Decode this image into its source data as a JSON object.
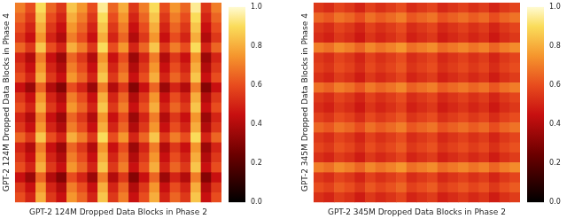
{
  "chart_data": [
    {
      "type": "heatmap",
      "x_label": "GPT-2 124M Dropped Data Blocks in Phase 2",
      "y_label": "GPT-2 124M Dropped Data Blocks in Phase 4",
      "tick_labels": false,
      "grid": false,
      "cells": [
        [
          0.7,
          0.6,
          0.9,
          0.65,
          0.55,
          0.85,
          0.75,
          0.6,
          0.95,
          0.65,
          0.8,
          0.55,
          0.7,
          0.9,
          0.6,
          0.75,
          0.65,
          0.95,
          0.55,
          0.7
        ],
        [
          0.65,
          0.55,
          0.85,
          0.6,
          0.5,
          0.8,
          0.7,
          0.55,
          0.9,
          0.6,
          0.75,
          0.5,
          0.65,
          0.85,
          0.55,
          0.7,
          0.6,
          0.9,
          0.5,
          0.65
        ],
        [
          0.6,
          0.5,
          0.8,
          0.55,
          0.45,
          0.75,
          0.65,
          0.5,
          0.85,
          0.55,
          0.7,
          0.45,
          0.6,
          0.8,
          0.5,
          0.65,
          0.55,
          0.85,
          0.45,
          0.6
        ],
        [
          0.55,
          0.45,
          0.75,
          0.5,
          0.4,
          0.7,
          0.6,
          0.45,
          0.8,
          0.5,
          0.65,
          0.4,
          0.55,
          0.75,
          0.45,
          0.6,
          0.5,
          0.8,
          0.4,
          0.55
        ],
        [
          0.65,
          0.55,
          0.85,
          0.6,
          0.5,
          0.8,
          0.7,
          0.55,
          0.9,
          0.6,
          0.75,
          0.5,
          0.65,
          0.85,
          0.55,
          0.7,
          0.6,
          0.9,
          0.5,
          0.65
        ],
        [
          0.5,
          0.4,
          0.7,
          0.45,
          0.35,
          0.65,
          0.55,
          0.4,
          0.75,
          0.45,
          0.6,
          0.35,
          0.5,
          0.7,
          0.4,
          0.55,
          0.45,
          0.75,
          0.35,
          0.5
        ],
        [
          0.55,
          0.45,
          0.75,
          0.5,
          0.4,
          0.7,
          0.6,
          0.45,
          0.8,
          0.5,
          0.65,
          0.4,
          0.55,
          0.75,
          0.45,
          0.6,
          0.5,
          0.8,
          0.4,
          0.55
        ],
        [
          0.6,
          0.5,
          0.8,
          0.55,
          0.45,
          0.75,
          0.65,
          0.5,
          0.85,
          0.55,
          0.7,
          0.45,
          0.6,
          0.8,
          0.5,
          0.65,
          0.55,
          0.85,
          0.45,
          0.6
        ],
        [
          0.45,
          0.35,
          0.65,
          0.4,
          0.3,
          0.6,
          0.5,
          0.35,
          0.7,
          0.4,
          0.55,
          0.3,
          0.45,
          0.65,
          0.35,
          0.5,
          0.4,
          0.7,
          0.3,
          0.45
        ],
        [
          0.55,
          0.45,
          0.75,
          0.5,
          0.4,
          0.7,
          0.6,
          0.45,
          0.8,
          0.5,
          0.65,
          0.4,
          0.55,
          0.75,
          0.45,
          0.6,
          0.5,
          0.8,
          0.4,
          0.55
        ],
        [
          0.6,
          0.5,
          0.8,
          0.55,
          0.45,
          0.75,
          0.65,
          0.5,
          0.85,
          0.55,
          0.7,
          0.45,
          0.6,
          0.8,
          0.5,
          0.65,
          0.55,
          0.85,
          0.45,
          0.6
        ],
        [
          0.5,
          0.4,
          0.7,
          0.45,
          0.35,
          0.65,
          0.55,
          0.4,
          0.75,
          0.45,
          0.6,
          0.35,
          0.5,
          0.7,
          0.4,
          0.55,
          0.45,
          0.75,
          0.35,
          0.5
        ],
        [
          0.55,
          0.45,
          0.75,
          0.5,
          0.4,
          0.7,
          0.6,
          0.45,
          0.8,
          0.5,
          0.65,
          0.4,
          0.55,
          0.75,
          0.45,
          0.6,
          0.5,
          0.8,
          0.4,
          0.55
        ],
        [
          0.65,
          0.55,
          0.85,
          0.6,
          0.5,
          0.8,
          0.7,
          0.55,
          0.9,
          0.6,
          0.75,
          0.5,
          0.65,
          0.85,
          0.55,
          0.7,
          0.6,
          0.9,
          0.5,
          0.65
        ],
        [
          0.5,
          0.4,
          0.7,
          0.45,
          0.35,
          0.65,
          0.55,
          0.4,
          0.75,
          0.45,
          0.6,
          0.35,
          0.5,
          0.7,
          0.4,
          0.55,
          0.45,
          0.75,
          0.35,
          0.5
        ],
        [
          0.55,
          0.45,
          0.75,
          0.5,
          0.4,
          0.7,
          0.6,
          0.45,
          0.8,
          0.5,
          0.65,
          0.4,
          0.55,
          0.75,
          0.45,
          0.6,
          0.5,
          0.8,
          0.4,
          0.55
        ],
        [
          0.6,
          0.5,
          0.8,
          0.55,
          0.45,
          0.75,
          0.65,
          0.5,
          0.85,
          0.55,
          0.7,
          0.45,
          0.6,
          0.8,
          0.5,
          0.65,
          0.55,
          0.85,
          0.45,
          0.6
        ],
        [
          0.45,
          0.35,
          0.65,
          0.4,
          0.3,
          0.6,
          0.5,
          0.35,
          0.7,
          0.4,
          0.55,
          0.3,
          0.45,
          0.65,
          0.35,
          0.5,
          0.4,
          0.7,
          0.3,
          0.45
        ],
        [
          0.55,
          0.45,
          0.75,
          0.5,
          0.4,
          0.7,
          0.6,
          0.45,
          0.8,
          0.5,
          0.65,
          0.4,
          0.55,
          0.75,
          0.45,
          0.6,
          0.5,
          0.8,
          0.4,
          0.55
        ],
        [
          0.6,
          0.5,
          0.8,
          0.55,
          0.45,
          0.75,
          0.65,
          0.5,
          0.85,
          0.55,
          0.7,
          0.45,
          0.6,
          0.8,
          0.5,
          0.65,
          0.55,
          0.85,
          0.45,
          0.6
        ]
      ],
      "colorbar": {
        "lim": [
          0,
          1
        ],
        "ticks": [
          {
            "value": 0,
            "label": "0.0"
          },
          {
            "value": 0.2,
            "label": "0.2"
          },
          {
            "value": 0.4,
            "label": "0.4"
          },
          {
            "value": 0.6,
            "label": "0.6"
          },
          {
            "value": 0.8,
            "label": "0.8"
          },
          {
            "value": 1,
            "label": "1.0"
          }
        ]
      }
    },
    {
      "type": "heatmap",
      "x_label": "GPT-2 345M Dropped Data Blocks in Phase 2",
      "y_label": "GPT-2 345M Dropped Data Blocks in Phase 4",
      "tick_labels": false,
      "grid": false,
      "cells": [
        [
          0.55,
          0.52,
          0.58,
          0.55,
          0.5,
          0.57,
          0.53,
          0.56,
          0.6,
          0.52,
          0.55,
          0.58,
          0.51,
          0.54,
          0.57,
          0.53,
          0.56,
          0.5,
          0.55,
          0.58
        ],
        [
          0.65,
          0.62,
          0.68,
          0.65,
          0.6,
          0.67,
          0.63,
          0.66,
          0.7,
          0.62,
          0.65,
          0.68,
          0.61,
          0.64,
          0.67,
          0.63,
          0.66,
          0.6,
          0.65,
          0.68
        ],
        [
          0.55,
          0.52,
          0.58,
          0.55,
          0.5,
          0.57,
          0.53,
          0.56,
          0.6,
          0.52,
          0.55,
          0.58,
          0.51,
          0.54,
          0.57,
          0.53,
          0.56,
          0.5,
          0.55,
          0.58
        ],
        [
          0.52,
          0.49,
          0.55,
          0.52,
          0.47,
          0.54,
          0.5,
          0.53,
          0.57,
          0.49,
          0.52,
          0.55,
          0.48,
          0.51,
          0.54,
          0.5,
          0.53,
          0.47,
          0.52,
          0.55
        ],
        [
          0.7,
          0.67,
          0.73,
          0.7,
          0.65,
          0.72,
          0.68,
          0.71,
          0.75,
          0.67,
          0.7,
          0.73,
          0.66,
          0.69,
          0.72,
          0.68,
          0.71,
          0.65,
          0.7,
          0.73
        ],
        [
          0.55,
          0.52,
          0.58,
          0.55,
          0.5,
          0.57,
          0.53,
          0.56,
          0.6,
          0.52,
          0.55,
          0.58,
          0.51,
          0.54,
          0.57,
          0.53,
          0.56,
          0.5,
          0.55,
          0.58
        ],
        [
          0.57,
          0.54,
          0.6,
          0.57,
          0.52,
          0.59,
          0.55,
          0.58,
          0.62,
          0.54,
          0.57,
          0.6,
          0.53,
          0.56,
          0.59,
          0.55,
          0.58,
          0.52,
          0.57,
          0.6
        ],
        [
          0.53,
          0.5,
          0.56,
          0.53,
          0.48,
          0.55,
          0.51,
          0.54,
          0.58,
          0.5,
          0.53,
          0.56,
          0.49,
          0.52,
          0.55,
          0.51,
          0.54,
          0.48,
          0.53,
          0.56
        ],
        [
          0.67,
          0.64,
          0.7,
          0.67,
          0.62,
          0.69,
          0.65,
          0.68,
          0.72,
          0.64,
          0.67,
          0.7,
          0.63,
          0.66,
          0.69,
          0.65,
          0.68,
          0.62,
          0.67,
          0.7
        ],
        [
          0.55,
          0.52,
          0.58,
          0.55,
          0.5,
          0.57,
          0.53,
          0.56,
          0.6,
          0.52,
          0.55,
          0.58,
          0.51,
          0.54,
          0.57,
          0.53,
          0.56,
          0.5,
          0.55,
          0.58
        ],
        [
          0.52,
          0.49,
          0.55,
          0.52,
          0.47,
          0.54,
          0.5,
          0.53,
          0.57,
          0.49,
          0.52,
          0.55,
          0.48,
          0.51,
          0.54,
          0.5,
          0.53,
          0.47,
          0.52,
          0.55
        ],
        [
          0.57,
          0.54,
          0.6,
          0.57,
          0.52,
          0.59,
          0.55,
          0.58,
          0.62,
          0.54,
          0.57,
          0.6,
          0.53,
          0.56,
          0.59,
          0.55,
          0.58,
          0.52,
          0.57,
          0.6
        ],
        [
          0.65,
          0.62,
          0.68,
          0.65,
          0.6,
          0.67,
          0.63,
          0.66,
          0.7,
          0.62,
          0.65,
          0.68,
          0.61,
          0.64,
          0.67,
          0.63,
          0.66,
          0.6,
          0.65,
          0.68
        ],
        [
          0.55,
          0.52,
          0.58,
          0.55,
          0.5,
          0.57,
          0.53,
          0.56,
          0.6,
          0.52,
          0.55,
          0.58,
          0.51,
          0.54,
          0.57,
          0.53,
          0.56,
          0.5,
          0.55,
          0.58
        ],
        [
          0.58,
          0.55,
          0.61,
          0.58,
          0.53,
          0.6,
          0.56,
          0.59,
          0.63,
          0.55,
          0.58,
          0.61,
          0.54,
          0.57,
          0.6,
          0.56,
          0.59,
          0.53,
          0.58,
          0.61
        ],
        [
          0.53,
          0.5,
          0.56,
          0.53,
          0.48,
          0.55,
          0.51,
          0.54,
          0.58,
          0.5,
          0.53,
          0.56,
          0.49,
          0.52,
          0.55,
          0.51,
          0.54,
          0.48,
          0.53,
          0.56
        ],
        [
          0.7,
          0.67,
          0.73,
          0.7,
          0.65,
          0.72,
          0.68,
          0.71,
          0.75,
          0.67,
          0.7,
          0.73,
          0.66,
          0.69,
          0.72,
          0.68,
          0.71,
          0.65,
          0.7,
          0.73
        ],
        [
          0.55,
          0.52,
          0.58,
          0.55,
          0.5,
          0.57,
          0.53,
          0.56,
          0.6,
          0.52,
          0.55,
          0.58,
          0.51,
          0.54,
          0.57,
          0.53,
          0.56,
          0.5,
          0.55,
          0.58
        ],
        [
          0.6,
          0.57,
          0.63,
          0.6,
          0.55,
          0.62,
          0.58,
          0.61,
          0.65,
          0.57,
          0.6,
          0.63,
          0.56,
          0.59,
          0.62,
          0.58,
          0.61,
          0.55,
          0.6,
          0.63
        ],
        [
          0.53,
          0.5,
          0.56,
          0.53,
          0.48,
          0.55,
          0.51,
          0.54,
          0.58,
          0.5,
          0.53,
          0.56,
          0.49,
          0.52,
          0.55,
          0.51,
          0.54,
          0.48,
          0.53,
          0.56
        ]
      ],
      "colorbar": {
        "lim": [
          0,
          1
        ],
        "ticks": [
          {
            "value": 0,
            "label": "0.0"
          },
          {
            "value": 0.2,
            "label": "0.2"
          },
          {
            "value": 0.4,
            "label": "0.4"
          },
          {
            "value": 0.6,
            "label": "0.6"
          },
          {
            "value": 0.8,
            "label": "0.8"
          },
          {
            "value": 1,
            "label": "1.0"
          }
        ]
      }
    }
  ]
}
